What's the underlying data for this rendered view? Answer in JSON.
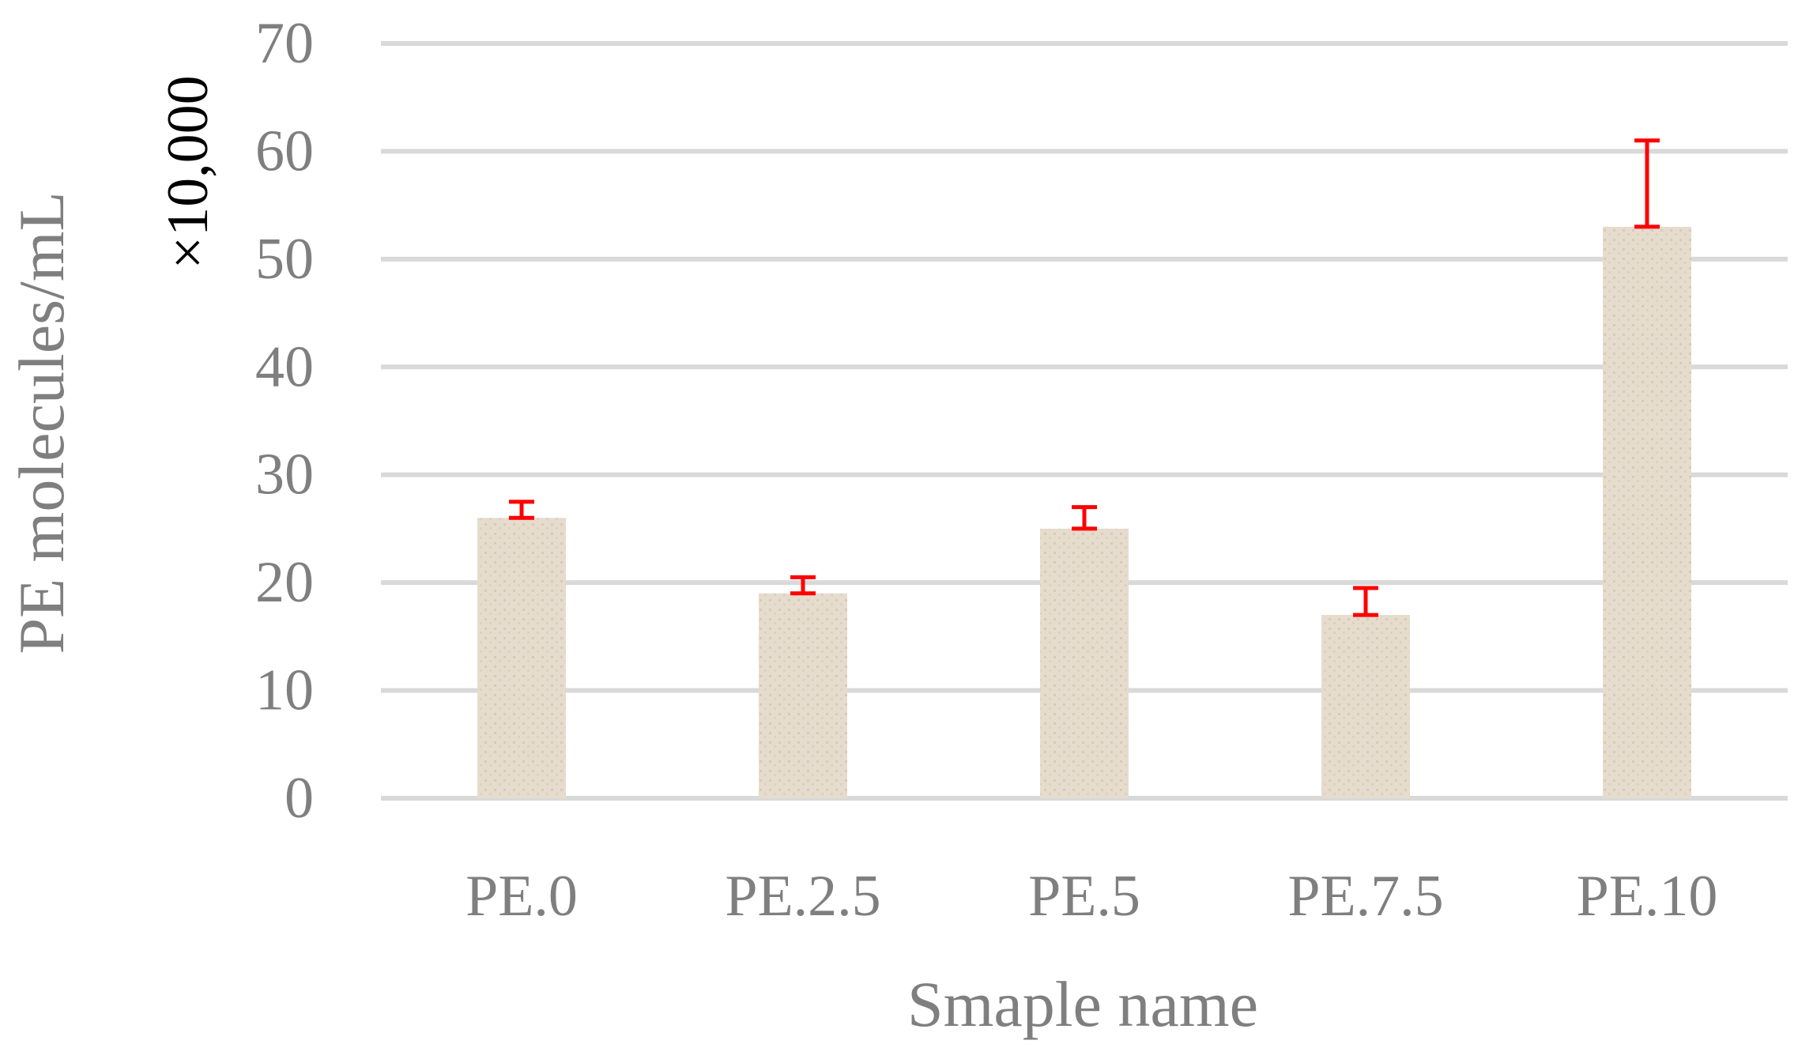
{
  "chart_data": {
    "type": "bar",
    "categories": [
      "PE.0",
      "PE.2.5",
      "PE.5",
      "PE.7.5",
      "PE.10"
    ],
    "values": [
      26,
      19,
      25,
      17,
      53
    ],
    "error_high": [
      27.5,
      20.5,
      27,
      19.5,
      61
    ],
    "error_low": [
      26,
      19,
      25,
      17,
      53
    ],
    "xlabel": "Smaple name",
    "ylabel": "PE molecules/mL",
    "ylabel_multiplier": "×10,000",
    "ylim": [
      0,
      70
    ],
    "yticks": [
      0,
      10,
      20,
      30,
      40,
      50,
      60,
      70
    ],
    "grid": true,
    "colors": {
      "bar": "#e6dccd",
      "bar_texture": "#d8cbb6",
      "error": "#ff0000",
      "grid": "#d9d9d9",
      "text": "#7f7f7f"
    }
  }
}
